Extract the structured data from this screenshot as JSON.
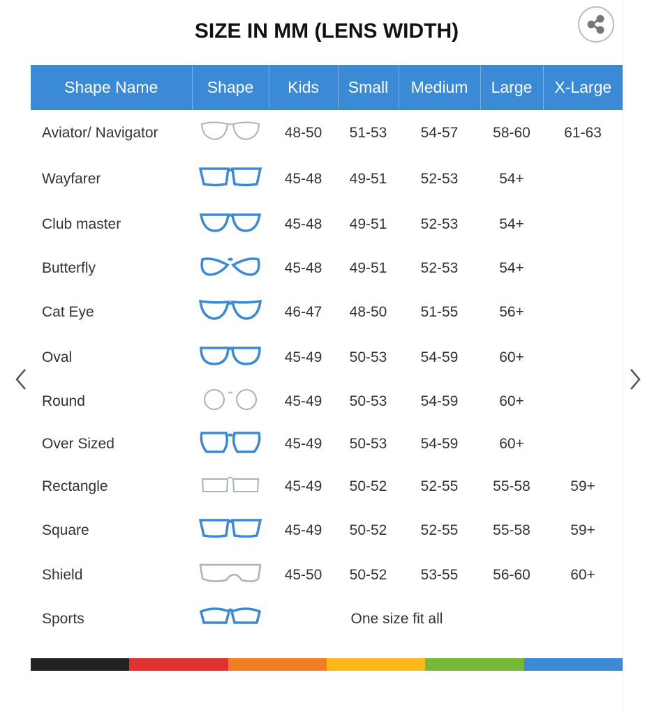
{
  "title": "SIZE IN MM (LENS WIDTH)",
  "headers": [
    "Shape Name",
    "Shape",
    "Kids",
    "Small",
    "Medium",
    "Large",
    "X-Large"
  ],
  "rows": [
    {
      "name": "Aviator/ Navigator",
      "shape": "aviator",
      "tone": "grey",
      "kids": "48-50",
      "small": "51-53",
      "medium": "54-57",
      "large": "58-60",
      "xlarge": "61-63"
    },
    {
      "name": "Wayfarer",
      "shape": "wayfarer",
      "tone": "blue",
      "kids": "45-48",
      "small": "49-51",
      "medium": "52-53",
      "large": "54+",
      "xlarge": ""
    },
    {
      "name": "Club master",
      "shape": "clubmaster",
      "tone": "mixed",
      "kids": "45-48",
      "small": "49-51",
      "medium": "52-53",
      "large": "54+",
      "xlarge": ""
    },
    {
      "name": "Butterfly",
      "shape": "butterfly",
      "tone": "blue",
      "kids": "45-48",
      "small": "49-51",
      "medium": "52-53",
      "large": "54+",
      "xlarge": ""
    },
    {
      "name": "Cat Eye",
      "shape": "cateye",
      "tone": "blue",
      "kids": "46-47",
      "small": "48-50",
      "medium": "51-55",
      "large": "56+",
      "xlarge": ""
    },
    {
      "name": "Oval",
      "shape": "oval",
      "tone": "blue",
      "kids": "45-49",
      "small": "50-53",
      "medium": "54-59",
      "large": "60+",
      "xlarge": ""
    },
    {
      "name": "Round",
      "shape": "round",
      "tone": "grey",
      "kids": "45-49",
      "small": "50-53",
      "medium": "54-59",
      "large": "60+",
      "xlarge": ""
    },
    {
      "name": "Over Sized",
      "shape": "oversized",
      "tone": "blue",
      "kids": "45-49",
      "small": "50-53",
      "medium": "54-59",
      "large": "60+",
      "xlarge": ""
    },
    {
      "name": "Rectangle",
      "shape": "rectangle",
      "tone": "grey",
      "kids": "45-49",
      "small": "50-52",
      "medium": "52-55",
      "large": "55-58",
      "xlarge": "59+"
    },
    {
      "name": "Square",
      "shape": "square",
      "tone": "blue",
      "kids": "45-49",
      "small": "50-52",
      "medium": "52-55",
      "large": "55-58",
      "xlarge": "59+"
    },
    {
      "name": "Shield",
      "shape": "shield",
      "tone": "grey",
      "kids": "45-50",
      "small": "50-52",
      "medium": "53-55",
      "large": "56-60",
      "xlarge": "60+"
    },
    {
      "name": "Sports",
      "shape": "sports",
      "tone": "blue",
      "span_text": "One size fit all"
    }
  ],
  "colors": {
    "header": "#3a8ad6",
    "frame_blue": "#3a8ad6",
    "frame_grey": "#a9b3b8",
    "stripe": [
      "#222222",
      "#e0322e",
      "#f07f22",
      "#fbb817",
      "#77b83a",
      "#3a8ad6"
    ]
  },
  "icons": {
    "share": "share-icon",
    "prev": "chevron-left-icon",
    "next": "chevron-right-icon"
  }
}
